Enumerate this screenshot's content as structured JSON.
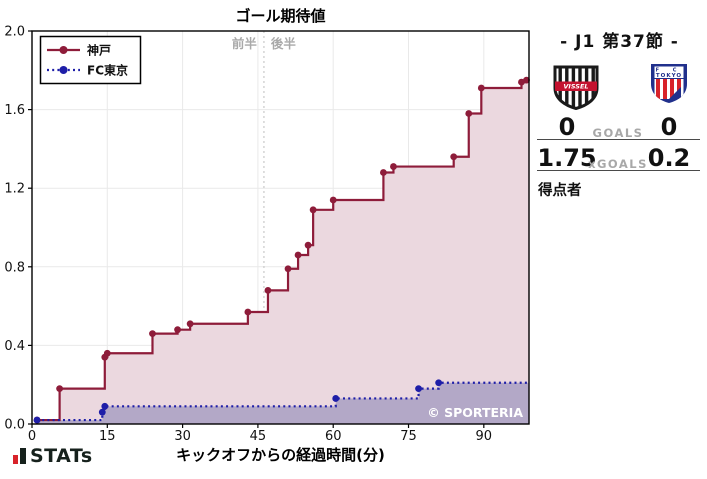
{
  "chart_data": {
    "type": "line",
    "subtype": "step-post",
    "title": "ゴール期待値",
    "xlabel": "キックオフからの経過時間(分)",
    "xlim": [
      0,
      99
    ],
    "ylim": [
      0,
      2.0
    ],
    "xticks": [
      0,
      15,
      30,
      45,
      60,
      75,
      90
    ],
    "yticks": [
      "0.0",
      "0.4",
      "0.8",
      "1.2",
      "1.6",
      "2.0"
    ],
    "grid": true,
    "halftime_x": 46.2,
    "half_labels": {
      "first": "前半",
      "second": "後半"
    },
    "legend_position": "upper-left",
    "watermark": "© SPORTERIA",
    "series": [
      {
        "name": "神戸",
        "color": "#8E1C3A",
        "fill": "#EBD8DF",
        "style": "solid",
        "end_x": 99,
        "points": [
          [
            1,
            0.02
          ],
          [
            5.5,
            0.18
          ],
          [
            14.5,
            0.34
          ],
          [
            15,
            0.36
          ],
          [
            24,
            0.46
          ],
          [
            29,
            0.48
          ],
          [
            31.5,
            0.51
          ],
          [
            43,
            0.57
          ],
          [
            47,
            0.68
          ],
          [
            51,
            0.79
          ],
          [
            53,
            0.86
          ],
          [
            55,
            0.91
          ],
          [
            56,
            1.09
          ],
          [
            60,
            1.14
          ],
          [
            70,
            1.28
          ],
          [
            72,
            1.31
          ],
          [
            84,
            1.36
          ],
          [
            87,
            1.58
          ],
          [
            89.5,
            1.71
          ],
          [
            97.5,
            1.74
          ],
          [
            98.5,
            1.75
          ]
        ]
      },
      {
        "name": "FC東京",
        "color": "#1E1EA8",
        "fill": "#B3A8C7",
        "style": "dotted",
        "end_x": 99,
        "points": [
          [
            1,
            0.02
          ],
          [
            14,
            0.06
          ],
          [
            14.5,
            0.09
          ],
          [
            60.5,
            0.13
          ],
          [
            77,
            0.18
          ],
          [
            81,
            0.21
          ]
        ]
      }
    ],
    "colors": {
      "grid": "#E9E9E9",
      "half_line": "#C9C9C9",
      "muted_text": "#A9A9A9",
      "axis": "#000000"
    }
  },
  "match": {
    "title": "- J1 第37節 -",
    "goals_label": "GOALS",
    "xgoals_label": "xGOALS",
    "scorers_label": "得点者",
    "home": {
      "name": "神戸",
      "goals": "0",
      "xgoals": "1.75",
      "badge_text": "VISSEL"
    },
    "away": {
      "name": "FC東京",
      "goals": "0",
      "xgoals": "0.2",
      "badge_top": "F C",
      "badge_bottom": "TOKYO"
    }
  },
  "footer": {
    "brand": "STATs"
  }
}
